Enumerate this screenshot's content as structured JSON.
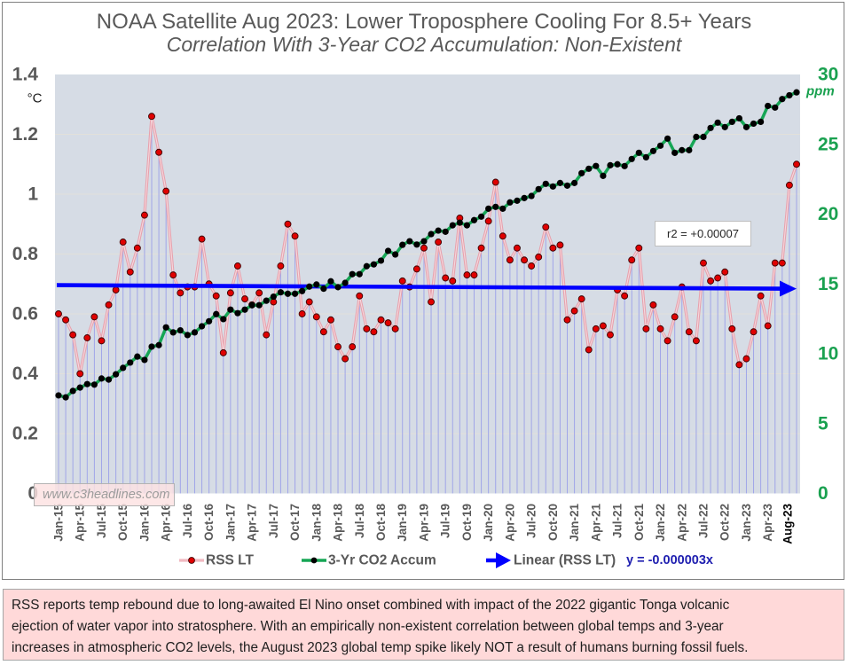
{
  "header": {
    "title": "NOAA Satellite Aug 2023: Lower Troposphere Cooling For 8.5+ Years",
    "subtitle": "Correlation With 3-Year CO2 Accumulation: Non-Existent"
  },
  "chart_data": {
    "type": "line",
    "title": "NOAA Satellite Aug 2023: Lower Troposphere Cooling For 8.5+ Years",
    "subtitle": "Correlation With 3-Year CO2 Accumulation: Non-Existent",
    "xlabel": "",
    "categories": [
      "Jan-15",
      "Feb-15",
      "Mar-15",
      "Apr-15",
      "May-15",
      "Jun-15",
      "Jul-15",
      "Aug-15",
      "Sep-15",
      "Oct-15",
      "Nov-15",
      "Dec-15",
      "Jan-16",
      "Feb-16",
      "Mar-16",
      "Apr-16",
      "May-16",
      "Jun-16",
      "Jul-16",
      "Aug-16",
      "Sep-16",
      "Oct-16",
      "Nov-16",
      "Dec-16",
      "Jan-17",
      "Feb-17",
      "Mar-17",
      "Apr-17",
      "May-17",
      "Jun-17",
      "Jul-17",
      "Aug-17",
      "Sep-17",
      "Oct-17",
      "Nov-17",
      "Dec-17",
      "Jan-18",
      "Feb-18",
      "Mar-18",
      "Apr-18",
      "May-18",
      "Jun-18",
      "Jul-18",
      "Aug-18",
      "Sep-18",
      "Oct-18",
      "Nov-18",
      "Dec-18",
      "Jan-19",
      "Feb-19",
      "Mar-19",
      "Apr-19",
      "May-19",
      "Jun-19",
      "Jul-19",
      "Aug-19",
      "Sep-19",
      "Oct-19",
      "Nov-19",
      "Dec-19",
      "Jan-20",
      "Feb-20",
      "Mar-20",
      "Apr-20",
      "May-20",
      "Jun-20",
      "Jul-20",
      "Aug-20",
      "Sep-20",
      "Oct-20",
      "Nov-20",
      "Dec-20",
      "Jan-21",
      "Feb-21",
      "Mar-21",
      "Apr-21",
      "May-21",
      "Jun-21",
      "Jul-21",
      "Aug-21",
      "Sep-21",
      "Oct-21",
      "Nov-21",
      "Dec-21",
      "Jan-22",
      "Feb-22",
      "Mar-22",
      "Apr-22",
      "May-22",
      "Jun-22",
      "Jul-22",
      "Aug-22",
      "Sep-22",
      "Oct-22",
      "Nov-22",
      "Dec-22",
      "Jan-23",
      "Feb-23",
      "Mar-23",
      "Apr-23",
      "May-23",
      "Jun-23",
      "Jul-23",
      "Aug-23"
    ],
    "x_tick_labels": [
      "Jan-15",
      "Apr-15",
      "Jul-15",
      "Oct-15",
      "Jan-16",
      "Apr-16",
      "Jul-16",
      "Oct-16",
      "Jan-17",
      "Apr-17",
      "Jul-17",
      "Oct-17",
      "Jan-18",
      "Apr-18",
      "Jul-18",
      "Oct-18",
      "Jan-19",
      "Apr-19",
      "Jul-19",
      "Oct-19",
      "Jan-20",
      "Apr-20",
      "Jul-20",
      "Oct-20",
      "Jan-21",
      "Apr-21",
      "Jul-21",
      "Oct-21",
      "Jan-22",
      "Apr-22",
      "Jul-22",
      "Oct-22",
      "Jan-23",
      "Apr-23",
      "Aug-23"
    ],
    "series": [
      {
        "name": "RSS LT",
        "axis": "left",
        "marker_color": "#e00000",
        "line_color": "#e7a1ad",
        "drop_line_color": "#a0a5e8",
        "values": [
          0.6,
          0.58,
          0.53,
          0.4,
          0.52,
          0.59,
          0.51,
          0.63,
          0.68,
          0.84,
          0.74,
          0.82,
          0.93,
          1.26,
          1.14,
          1.01,
          0.73,
          0.67,
          0.69,
          0.69,
          0.85,
          0.7,
          0.66,
          0.47,
          0.67,
          0.76,
          0.65,
          0.63,
          0.67,
          0.53,
          0.64,
          0.76,
          0.9,
          0.86,
          0.6,
          0.64,
          0.59,
          0.54,
          0.58,
          0.49,
          0.45,
          0.49,
          0.66,
          0.55,
          0.54,
          0.58,
          0.57,
          0.55,
          0.71,
          0.69,
          0.75,
          0.82,
          0.64,
          0.84,
          0.72,
          0.71,
          0.92,
          0.73,
          0.73,
          0.82,
          0.91,
          1.04,
          0.86,
          0.78,
          0.82,
          0.78,
          0.76,
          0.79,
          0.89,
          0.82,
          0.83,
          0.58,
          0.61,
          0.65,
          0.48,
          0.55,
          0.56,
          0.53,
          0.68,
          0.66,
          0.78,
          0.82,
          0.55,
          0.63,
          0.55,
          0.51,
          0.59,
          0.69,
          0.54,
          0.51,
          0.77,
          0.71,
          0.72,
          0.74,
          0.55,
          0.43,
          0.45,
          0.54,
          0.66,
          0.56,
          0.77,
          0.77,
          1.03,
          1.1
        ]
      },
      {
        "name": "3-Yr CO2 Accum",
        "axis": "right",
        "marker_color": "#000000",
        "line_color": "#16a655",
        "values": [
          7.02,
          6.88,
          7.34,
          7.58,
          7.83,
          7.79,
          8.23,
          8.15,
          8.53,
          8.99,
          9.37,
          9.8,
          9.56,
          10.51,
          10.62,
          11.89,
          11.53,
          11.68,
          11.34,
          11.53,
          11.97,
          12.33,
          12.84,
          12.48,
          13.16,
          12.91,
          13.16,
          13.48,
          13.48,
          13.8,
          14.09,
          14.4,
          14.3,
          14.3,
          14.49,
          14.81,
          14.96,
          14.66,
          15.19,
          14.77,
          15.08,
          15.7,
          15.7,
          16.27,
          16.4,
          16.67,
          17.37,
          17.11,
          17.8,
          18.06,
          17.82,
          18.06,
          18.57,
          18.82,
          18.74,
          19.2,
          19.39,
          19.2,
          19.57,
          19.82,
          20.39,
          20.52,
          20.39,
          20.84,
          20.96,
          21.15,
          21.3,
          21.79,
          22.17,
          21.98,
          22.23,
          22.04,
          22.23,
          22.93,
          23.25,
          23.45,
          22.74,
          23.5,
          23.57,
          23.44,
          23.95,
          24.39,
          24.07,
          24.52,
          24.9,
          25.41,
          24.39,
          24.58,
          24.58,
          25.53,
          25.53,
          26.17,
          26.55,
          26.23,
          26.61,
          26.86,
          26.23,
          26.48,
          26.61,
          27.75,
          27.63,
          28.24,
          28.51,
          28.72
        ]
      }
    ],
    "trendline": {
      "name": "Linear (RSS LT)",
      "equation": "y = -0.000003x",
      "start_value": 0.696,
      "end_value": 0.684,
      "color": "#0000ff"
    },
    "annotation": {
      "r2_label": "r2 = +0.00007"
    },
    "y_left": {
      "unit": "°C",
      "range": [
        0,
        1.4
      ],
      "ticks": [
        "0",
        "0.2",
        "0.4",
        "0.6",
        "0.8",
        "1",
        "1.2",
        "1.4"
      ],
      "color": "#595959"
    },
    "y_right": {
      "unit": "ppm",
      "range": [
        0,
        30
      ],
      "ticks": [
        "0",
        "5",
        "10",
        "15",
        "20",
        "25",
        "30"
      ],
      "color": "#1aa150"
    },
    "grid": true,
    "plot_background": "#d6dce5",
    "legend": {
      "position": "bottom",
      "items": [
        {
          "label": "RSS LT"
        },
        {
          "label": "3-Yr CO2 Accum"
        },
        {
          "label": "Linear (RSS LT)"
        }
      ]
    }
  },
  "watermark": "www.c3headlines.com",
  "note": {
    "lines": [
      "RSS reports temp rebound due to long-awaited El Nino onset combined with impact of the 2022 gigantic Tonga volcanic",
      "ejection of water vapor into stratosphere. With an empirically non-existent correlation between global temps and 3-year",
      "increases in atmospheric CO2 levels, the August 2023 global temp spike likely NOT a result of humans burning fossil fuels."
    ]
  }
}
